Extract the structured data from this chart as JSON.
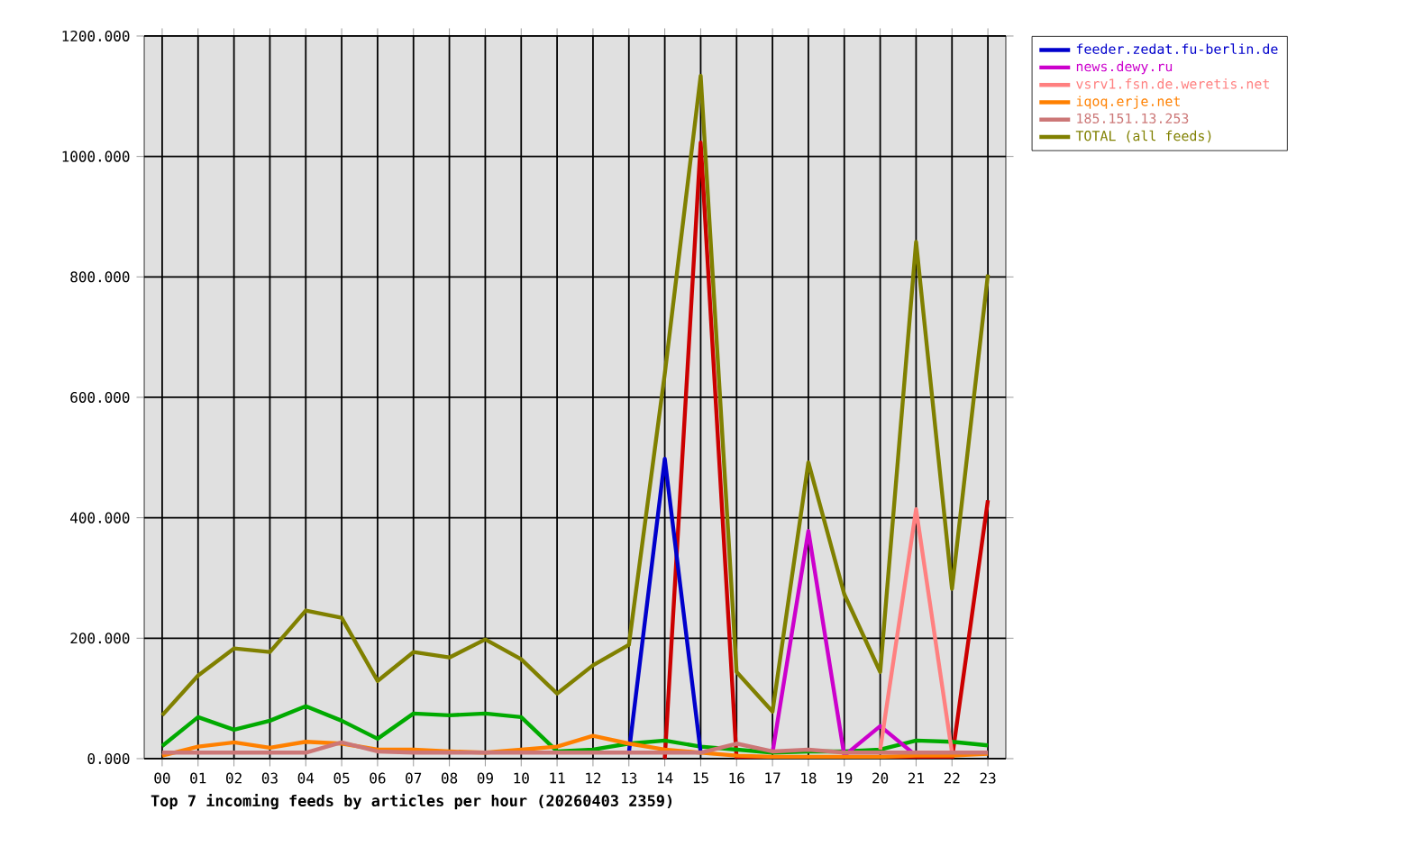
{
  "chart_data": {
    "type": "line",
    "xlabel": "Top 7 incoming feeds by articles per hour (20260403 2359)",
    "categories": [
      "00",
      "01",
      "02",
      "03",
      "04",
      "05",
      "06",
      "07",
      "08",
      "09",
      "10",
      "11",
      "12",
      "13",
      "14",
      "15",
      "16",
      "17",
      "18",
      "19",
      "20",
      "21",
      "22",
      "23"
    ],
    "series": [
      {
        "color": "#cc0000",
        "values": [
          null,
          null,
          null,
          null,
          null,
          null,
          null,
          null,
          null,
          null,
          null,
          null,
          null,
          null,
          0,
          1023,
          0,
          null,
          null,
          null,
          null,
          null,
          0,
          429
        ]
      },
      {
        "color": "#00aa00",
        "values": [
          21,
          69,
          48,
          63,
          87,
          63,
          33,
          75,
          72,
          75,
          69,
          12,
          15,
          25,
          30,
          20,
          15,
          10,
          12,
          12,
          15,
          30,
          28,
          22
        ]
      },
      {
        "name": "feeder.zedat.fu-berlin.de",
        "color": "#0000cc",
        "values": [
          null,
          null,
          null,
          null,
          null,
          null,
          null,
          null,
          null,
          null,
          null,
          null,
          null,
          10,
          498,
          10,
          null,
          null,
          null,
          null,
          null,
          null,
          null,
          null
        ]
      },
      {
        "name": "news.dewy.ru",
        "color": "#cc00cc",
        "values": [
          null,
          null,
          null,
          null,
          null,
          null,
          null,
          null,
          null,
          null,
          null,
          null,
          null,
          null,
          null,
          null,
          null,
          10,
          378,
          5,
          54,
          5,
          null,
          null
        ]
      },
      {
        "name": "vsrv1.fsn.de.weretis.net",
        "color": "#ff8080",
        "values": [
          null,
          null,
          null,
          null,
          null,
          null,
          null,
          null,
          null,
          null,
          null,
          null,
          null,
          null,
          null,
          null,
          null,
          null,
          null,
          null,
          15,
          414,
          10,
          null
        ]
      },
      {
        "name": "iqoq.erje.net",
        "color": "#ff8000",
        "values": [
          5,
          20,
          27,
          18,
          28,
          25,
          15,
          15,
          12,
          10,
          15,
          20,
          38,
          25,
          15,
          10,
          5,
          3,
          3,
          3,
          3,
          5,
          5,
          8
        ]
      },
      {
        "name": "185.151.13.253",
        "color": "#cc7777",
        "values": [
          10,
          10,
          10,
          10,
          10,
          27,
          12,
          10,
          10,
          10,
          10,
          10,
          10,
          10,
          10,
          10,
          25,
          12,
          15,
          10,
          10,
          10,
          10,
          10
        ]
      },
      {
        "name": "TOTAL (all feeds)",
        "color": "#808000",
        "values": [
          72,
          138,
          183,
          177,
          246,
          234,
          129,
          177,
          168,
          198,
          165,
          108,
          155,
          189,
          639,
          1134,
          144,
          78,
          492,
          273,
          144,
          858,
          282,
          804
        ]
      }
    ],
    "ylim": [
      0,
      1200
    ],
    "yticks": [
      {
        "value": 0,
        "label": "0.000"
      },
      {
        "value": 200,
        "label": "200.000"
      },
      {
        "value": 400,
        "label": "400.000"
      },
      {
        "value": 600,
        "label": "600.000"
      },
      {
        "value": 800,
        "label": "800.000"
      },
      {
        "value": 1000,
        "label": "1000.000"
      },
      {
        "value": 1200,
        "label": "1200.000"
      }
    ],
    "grid": true,
    "legend": "top right",
    "marker": "none",
    "line_style": "solid"
  }
}
